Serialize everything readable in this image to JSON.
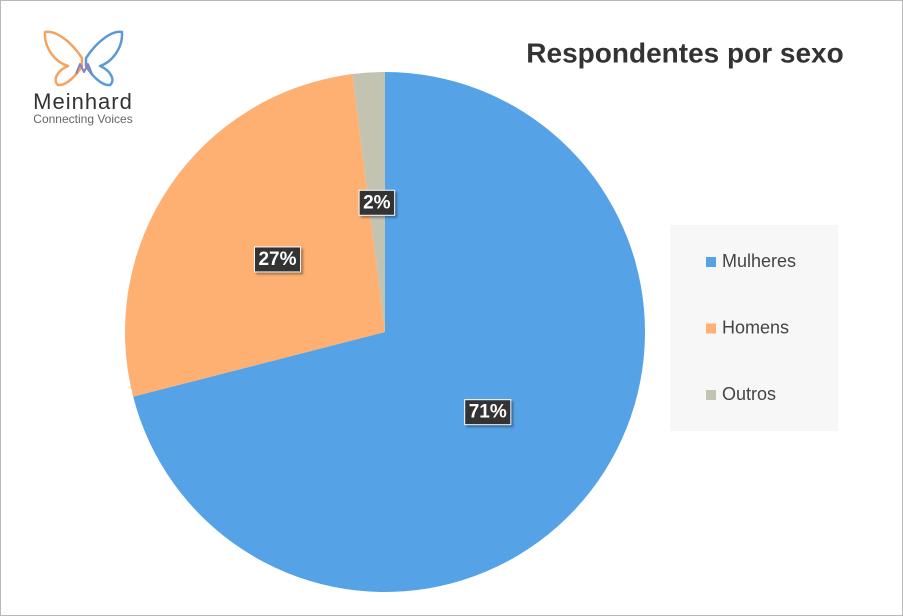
{
  "logo": {
    "name": "Meinhard",
    "tagline": "Connecting Voices"
  },
  "chart_data": {
    "type": "pie",
    "title": "Respondentes por sexo",
    "categories": [
      "Mulheres",
      "Homens",
      "Outros"
    ],
    "values": [
      71,
      27,
      2
    ],
    "value_labels": [
      "71%",
      "27%",
      "2%"
    ],
    "colors": [
      "#55a3e6",
      "#fdb072",
      "#c3c3b2"
    ],
    "legend": "right"
  }
}
